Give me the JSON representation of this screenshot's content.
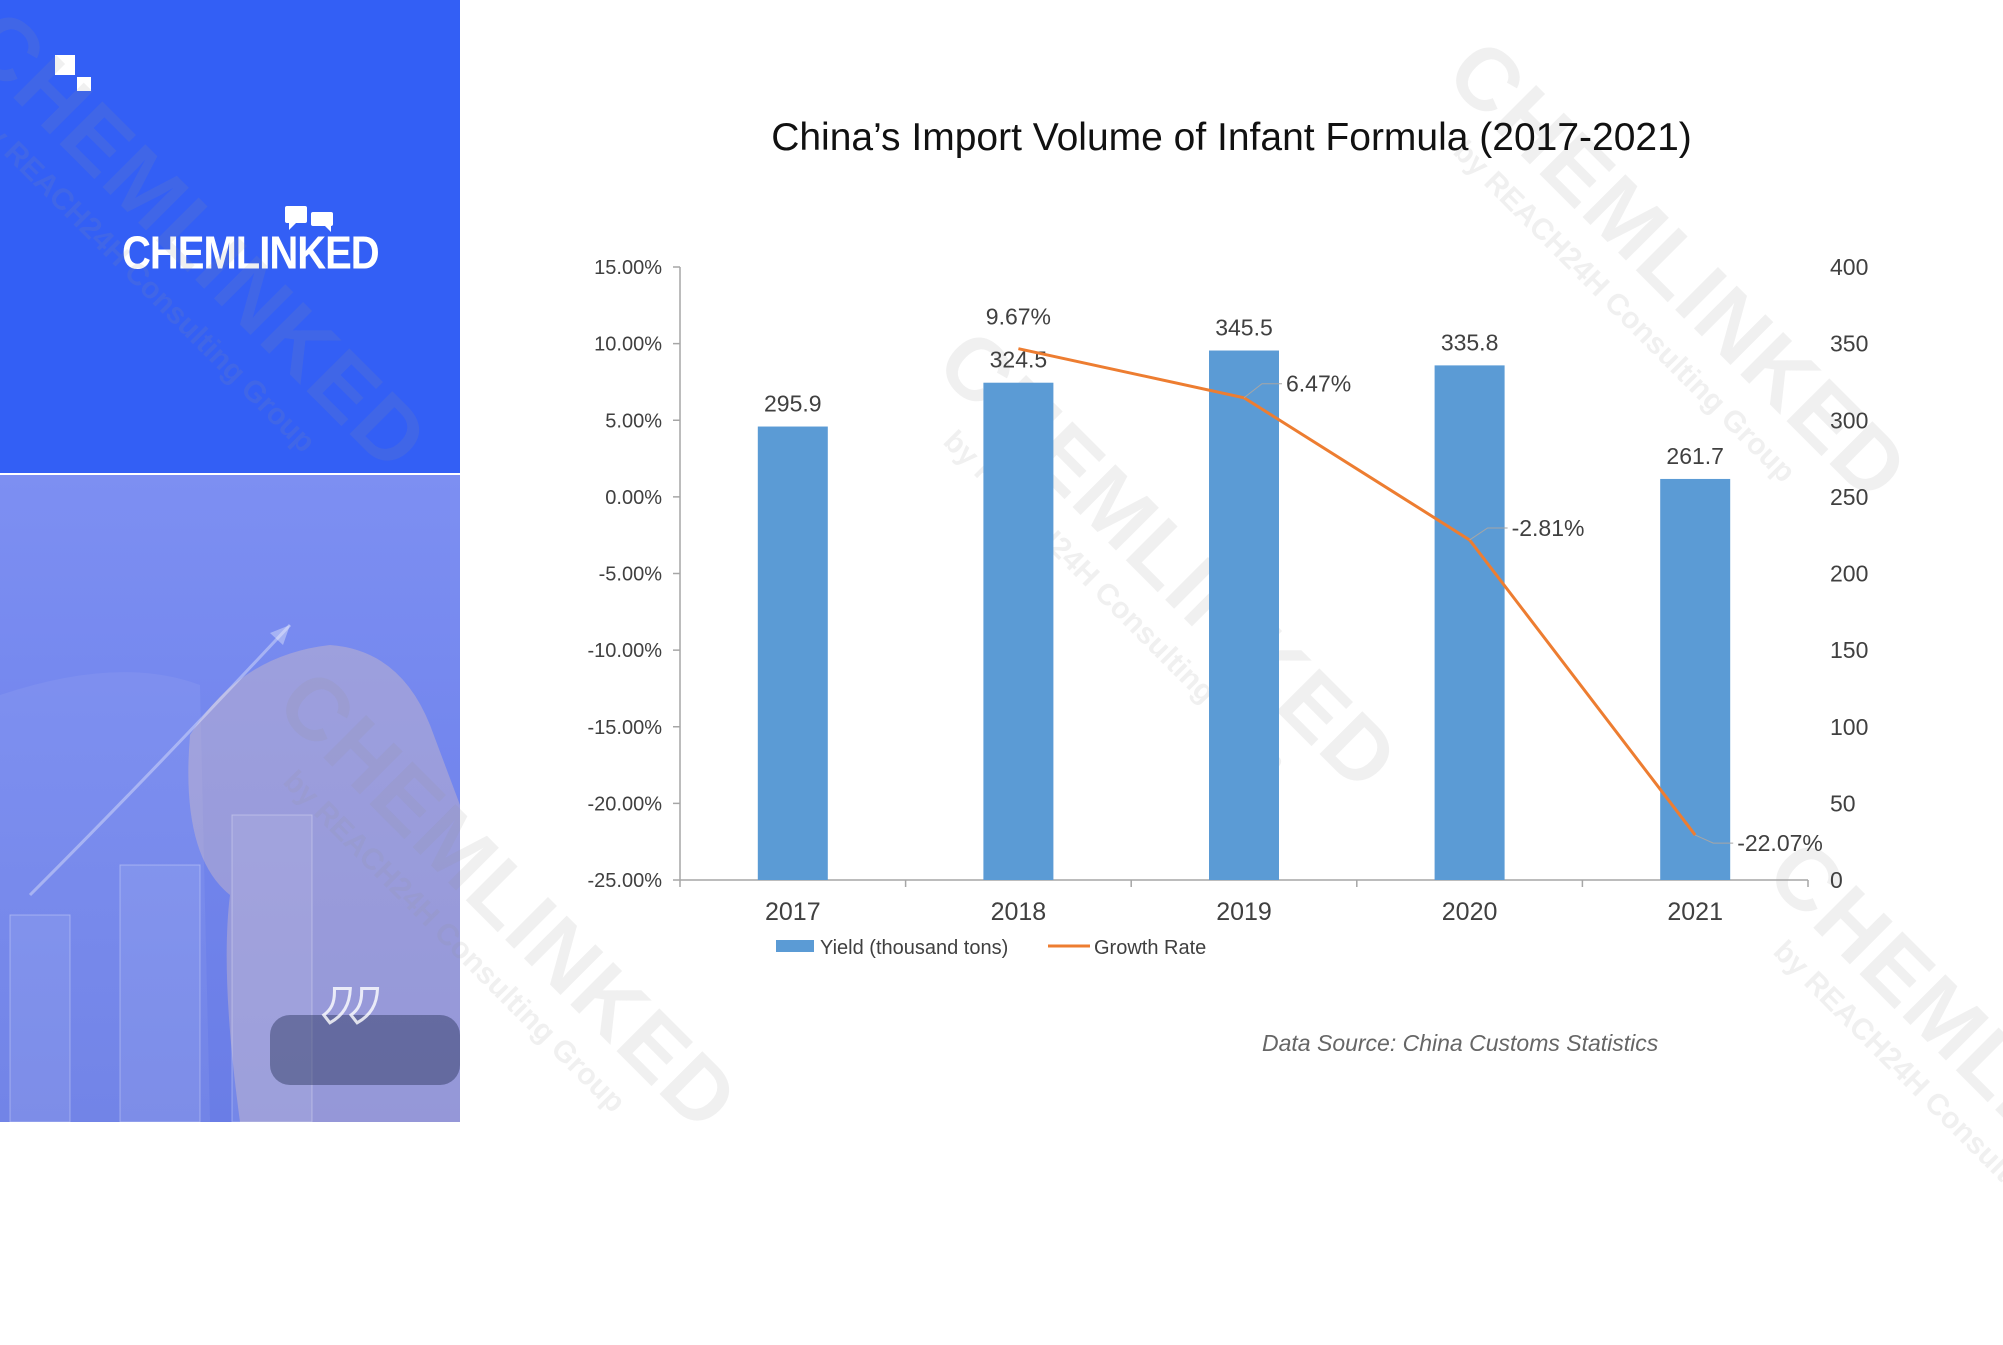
{
  "brand": {
    "name": "CHEMLINKED",
    "watermark_main": "CHEMLINKED",
    "watermark_sub": "by REACH24H Consulting Group"
  },
  "colors": {
    "brand_blue": "#335ff5",
    "bar": "#5b9bd5",
    "line": "#ed7d31",
    "axis_text": "#404040"
  },
  "source": "Data Source: China Customs Statistics",
  "chart_data": {
    "type": "bar+line",
    "title": "China’s Import Volume of Infant Formula (2017-2021)",
    "categories": [
      "2017",
      "2018",
      "2019",
      "2020",
      "2021"
    ],
    "series": [
      {
        "name": "Yield (thousand tons)",
        "type": "bar",
        "axis": "right",
        "values": [
          295.9,
          324.5,
          345.5,
          335.8,
          261.7
        ],
        "labels": [
          "295.9",
          "324.5",
          "345.5",
          "335.8",
          "261.7"
        ]
      },
      {
        "name": "Growth Rate",
        "type": "line",
        "axis": "left",
        "x": [
          "2018",
          "2019",
          "2020",
          "2021"
        ],
        "values": [
          9.67,
          6.47,
          -2.81,
          -22.07
        ],
        "labels": [
          "9.67%",
          "6.47%",
          "-2.81%",
          "-22.07%"
        ]
      }
    ],
    "left_axis": {
      "ylim": [
        -25,
        15
      ],
      "ticks": [
        15,
        10,
        5,
        0,
        -5,
        -10,
        -15,
        -20,
        -25
      ],
      "tick_labels": [
        "15.00%",
        "10.00%",
        "5.00%",
        "0.00%",
        "-5.00%",
        "-10.00%",
        "-15.00%",
        "-20.00%",
        "-25.00%"
      ]
    },
    "right_axis": {
      "ylim": [
        0,
        400
      ],
      "ticks": [
        400,
        350,
        300,
        250,
        200,
        150,
        100,
        50,
        0
      ],
      "tick_labels": [
        "400",
        "350",
        "300",
        "250",
        "200",
        "150",
        "100",
        "50",
        "0"
      ]
    },
    "legend_position": "bottom-left",
    "grid": false
  }
}
